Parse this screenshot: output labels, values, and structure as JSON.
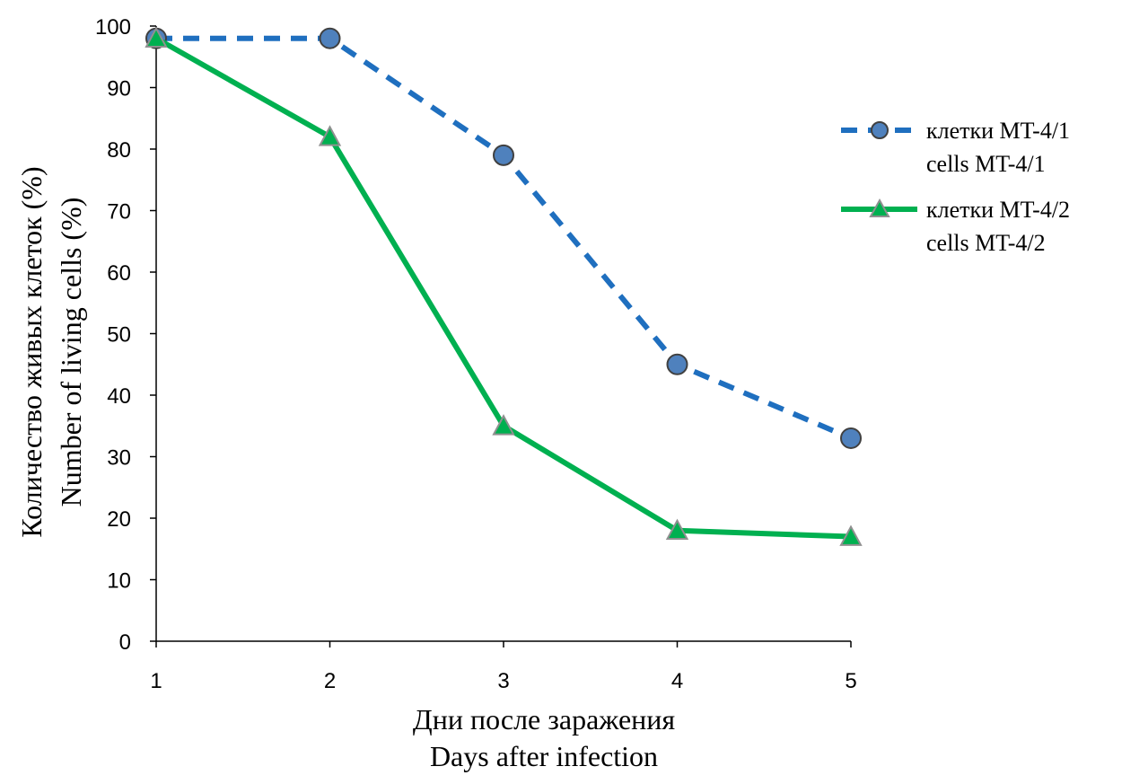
{
  "chart_data": {
    "type": "line",
    "x": [
      1,
      2,
      3,
      4,
      5
    ],
    "categories": [
      "1",
      "2",
      "3",
      "4",
      "5"
    ],
    "ylim": [
      0,
      100
    ],
    "yticks": [
      "0",
      "10",
      "20",
      "30",
      "40",
      "50",
      "60",
      "70",
      "80",
      "90",
      "100"
    ],
    "xlabel_line1": "Дни после заражения",
    "xlabel_line2": "Days after infection",
    "ylabel_line1": "Количество живых клеток (%)",
    "ylabel_line2": "Number of living cells (%)",
    "grid": false,
    "legend_position": "right",
    "series": [
      {
        "name_line1": "клетки MT-4/1",
        "name_line2": "cells MT-4/1",
        "values": [
          98,
          98,
          79,
          45,
          33
        ],
        "color": "#1F6FBF",
        "marker_fill": "#4F81BD",
        "marker": "circle",
        "line_style": "dashed"
      },
      {
        "name_line1": "клетки MT-4/2",
        "name_line2": "cells MT-4/2",
        "values": [
          98,
          82,
          35,
          18,
          17
        ],
        "color": "#00B050",
        "marker_fill": "#00B050",
        "marker": "triangle",
        "line_style": "solid"
      }
    ]
  }
}
